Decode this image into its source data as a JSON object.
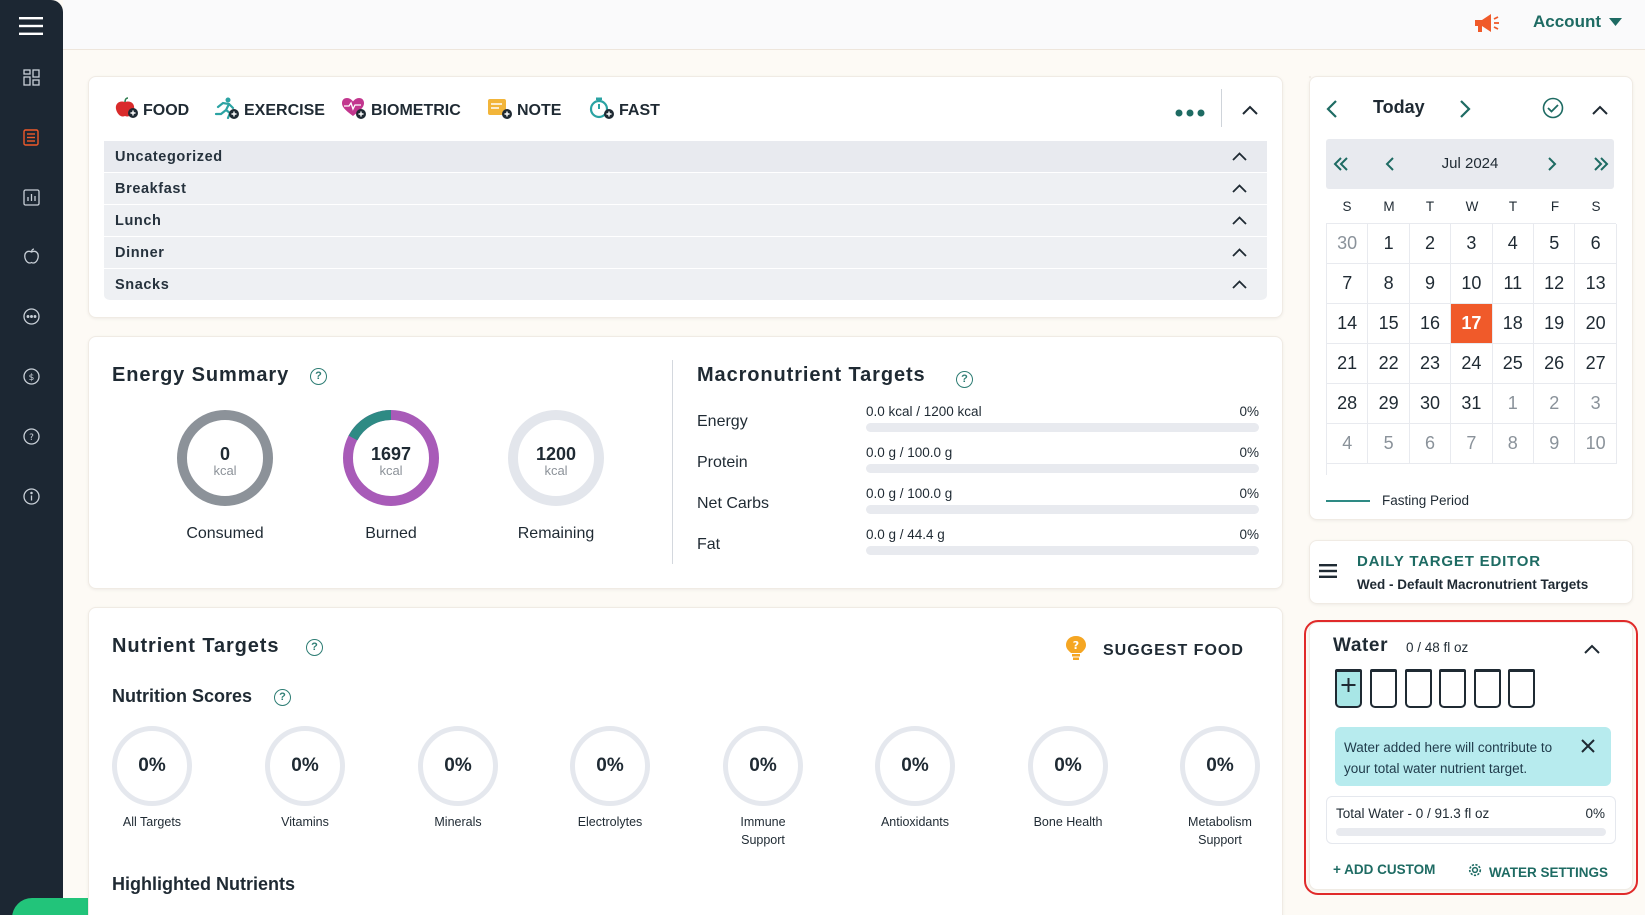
{
  "topbar": {
    "account_label": "Account"
  },
  "tabs": [
    {
      "label": "FOOD",
      "icon": "apple-plus-icon"
    },
    {
      "label": "EXERCISE",
      "icon": "runner-plus-icon"
    },
    {
      "label": "BIOMETRIC",
      "icon": "heart-plus-icon"
    },
    {
      "label": "NOTE",
      "icon": "note-plus-icon"
    },
    {
      "label": "FAST",
      "icon": "stopwatch-plus-icon"
    }
  ],
  "diary": {
    "categories": [
      "Uncategorized",
      "Breakfast",
      "Lunch",
      "Dinner",
      "Snacks"
    ]
  },
  "energy": {
    "title": "Energy Summary",
    "unit": "kcal",
    "consumed": {
      "value": "0",
      "label": "Consumed"
    },
    "burned": {
      "value": "1697",
      "label": "Burned"
    },
    "remaining": {
      "value": "1200",
      "label": "Remaining"
    }
  },
  "macros": {
    "title": "Macronutrient Targets",
    "rows": [
      {
        "name": "Energy",
        "value": "0.0 kcal / 1200 kcal",
        "pct": "0%"
      },
      {
        "name": "Protein",
        "value": "0.0 g / 100.0 g",
        "pct": "0%"
      },
      {
        "name": "Net Carbs",
        "value": "0.0 g / 100.0 g",
        "pct": "0%"
      },
      {
        "name": "Fat",
        "value": "0.0 g / 44.4 g",
        "pct": "0%"
      }
    ]
  },
  "nutrients": {
    "title": "Nutrient Targets",
    "suggest_label": "SUGGEST FOOD",
    "scores_title": "Nutrition Scores",
    "scores": [
      {
        "value": "0%",
        "label": "All Targets"
      },
      {
        "value": "0%",
        "label": "Vitamins"
      },
      {
        "value": "0%",
        "label": "Minerals"
      },
      {
        "value": "0%",
        "label": "Electrolytes"
      },
      {
        "value": "0%",
        "label": "Immune Support"
      },
      {
        "value": "0%",
        "label": "Antioxidants"
      },
      {
        "value": "0%",
        "label": "Bone Health"
      },
      {
        "value": "0%",
        "label": "Metabolism Support"
      }
    ],
    "highlighted_title": "Highlighted Nutrients"
  },
  "calendar": {
    "today_label": "Today",
    "month_label": "Jul 2024",
    "weekdays": [
      "S",
      "M",
      "T",
      "W",
      "T",
      "F",
      "S"
    ],
    "days": [
      [
        "30",
        "1",
        "2",
        "3",
        "4",
        "5",
        "6"
      ],
      [
        "7",
        "8",
        "9",
        "10",
        "11",
        "12",
        "13"
      ],
      [
        "14",
        "15",
        "16",
        "17",
        "18",
        "19",
        "20"
      ],
      [
        "21",
        "22",
        "23",
        "24",
        "25",
        "26",
        "27"
      ],
      [
        "28",
        "29",
        "30",
        "31",
        "1",
        "2",
        "3"
      ],
      [
        "4",
        "5",
        "6",
        "7",
        "8",
        "9",
        "10"
      ]
    ],
    "selected_day": "17",
    "legend_label": "Fasting Period"
  },
  "target_editor": {
    "title": "DAILY TARGET EDITOR",
    "subtitle": "Wed - Default Macronutrient Targets"
  },
  "water": {
    "title": "Water",
    "amount": "0 / 48 fl oz",
    "info_text": "Water added here will contribute to your total water nutrient target.",
    "total_label": "Total Water - 0 / 91.3 fl oz",
    "total_pct": "0%",
    "add_custom_label": "+ ADD CUSTOM",
    "settings_label": "WATER SETTINGS"
  },
  "colors": {
    "accent_teal": "#1e6b63",
    "brand_orange": "#f05a2a",
    "burned_purple": "#a85bb8",
    "highlight_red": "#e02a2a",
    "sidebar_dark": "#1c2733"
  }
}
